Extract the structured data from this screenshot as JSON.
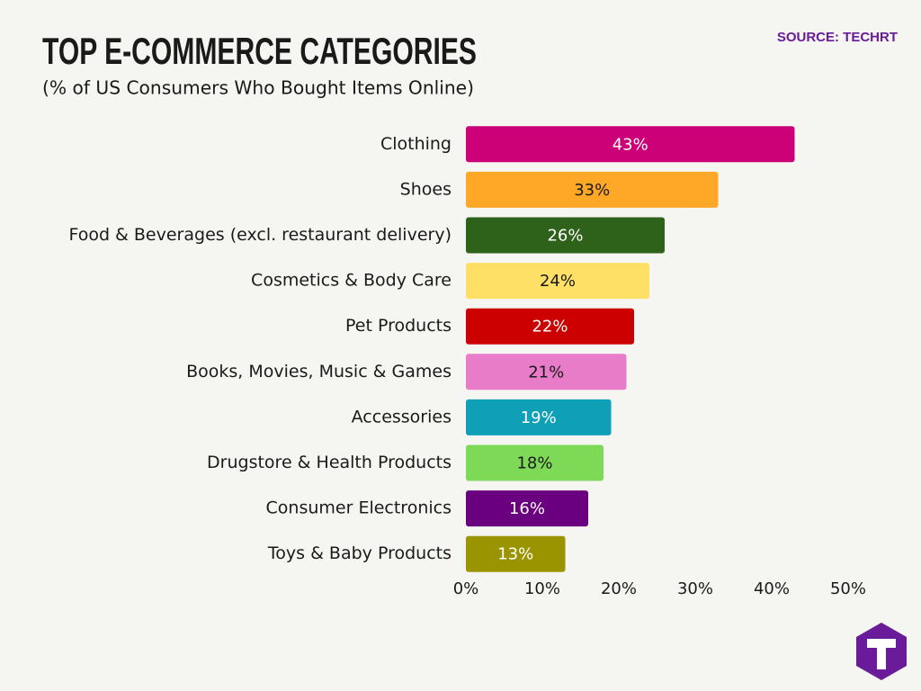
{
  "chart_data": {
    "type": "bar",
    "orientation": "horizontal",
    "title": "TOP E-COMMERCE CATEGORIES",
    "subtitle": "(% of US Consumers Who Bought Items Online)",
    "source": "SOURCE: TECHRT",
    "categories": [
      "Clothing",
      "Shoes",
      "Food & Beverages (excl. restaurant delivery)",
      "Cosmetics & Body Care",
      "Pet Products",
      "Books, Movies, Music & Games",
      "Accessories",
      "Drugstore & Health Products",
      "Consumer Electronics",
      "Toys & Baby Products"
    ],
    "values": [
      43,
      33,
      26,
      24,
      22,
      21,
      19,
      18,
      16,
      13
    ],
    "value_labels": [
      "43%",
      "33%",
      "26%",
      "24%",
      "22%",
      "21%",
      "19%",
      "18%",
      "16%",
      "13%"
    ],
    "colors": [
      "#cc0077",
      "#ffa726",
      "#2e6119",
      "#ffe066",
      "#cc0000",
      "#e87cc8",
      "#0fa0b8",
      "#7ed957",
      "#6a0080",
      "#999400"
    ],
    "xlim": [
      0,
      50
    ],
    "xticks": [
      {
        "value": 0,
        "label": "0%"
      },
      {
        "value": 10,
        "label": "10%"
      },
      {
        "value": 20,
        "label": "20%"
      },
      {
        "value": 30,
        "label": "30%"
      },
      {
        "value": 40,
        "label": "40%"
      },
      {
        "value": 50,
        "label": "50%"
      }
    ]
  }
}
